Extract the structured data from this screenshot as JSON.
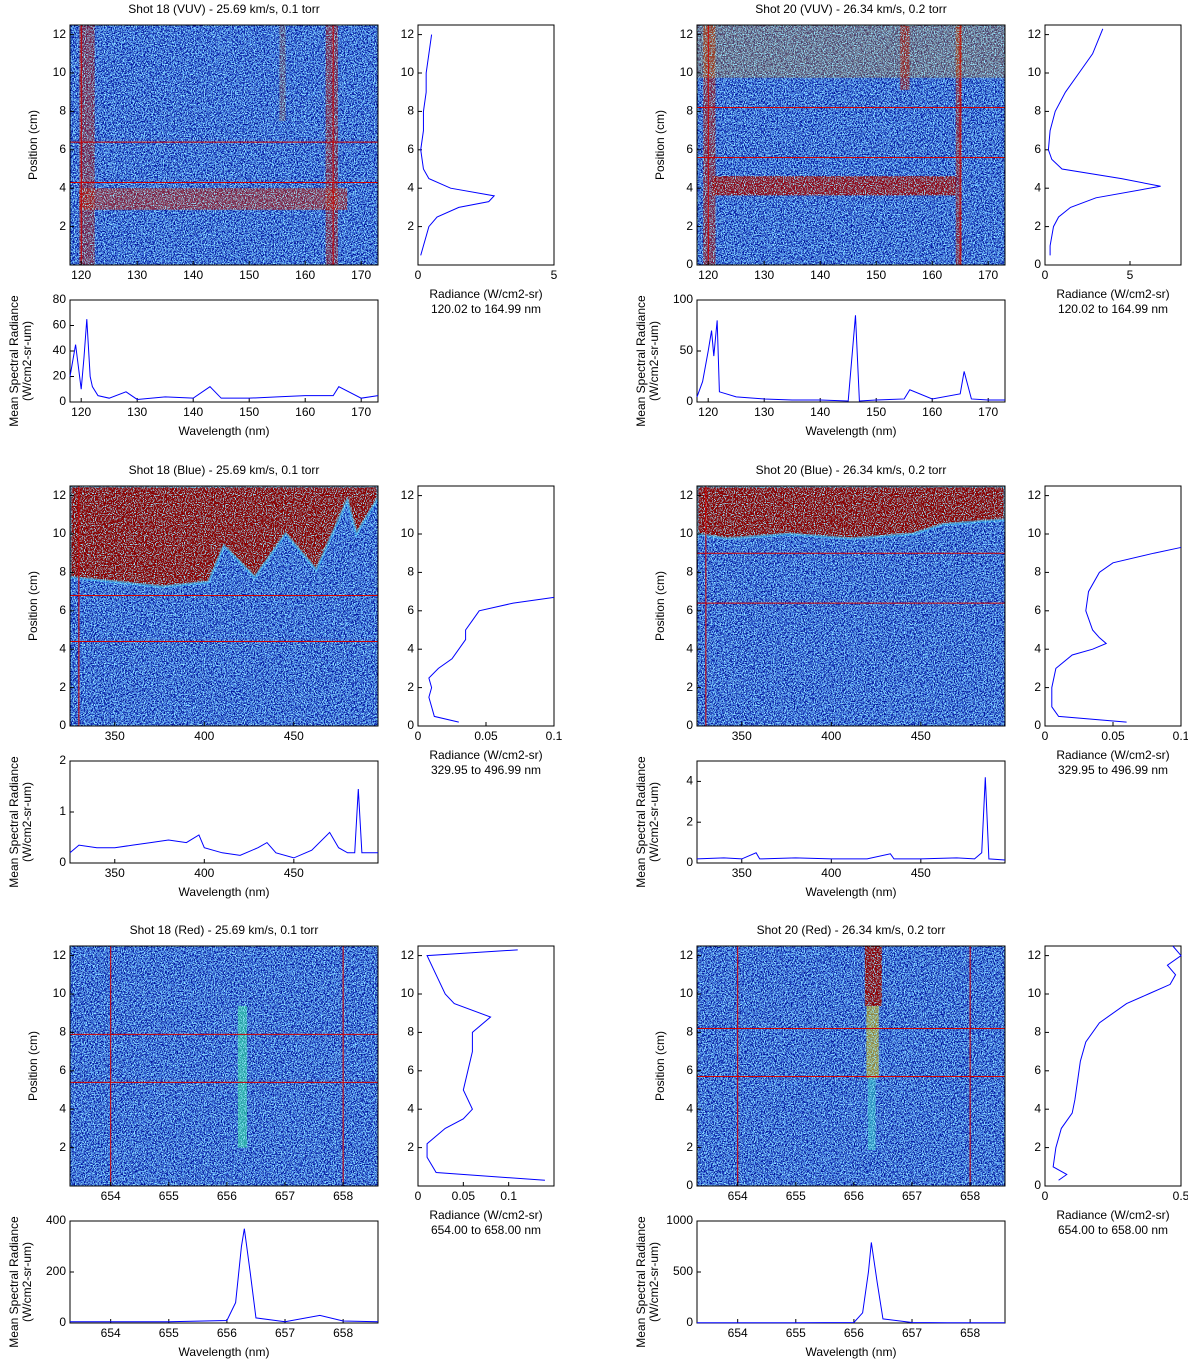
{
  "chart_data": [
    {
      "type": "heatmap",
      "title": "Shot 18 (VUV) - 25.69 km/s, 0.1 torr",
      "ylabel": "Position (cm)",
      "xlim": [
        118,
        173
      ],
      "xticks": [
        120,
        130,
        140,
        150,
        160,
        170
      ],
      "ylim": [
        0,
        12.5
      ],
      "yticks": [
        2,
        4,
        6,
        8,
        10,
        12
      ],
      "hlines": [
        4.3,
        6.4
      ],
      "vlines": [
        120.02,
        164.99
      ],
      "line_color": "#d00000"
    },
    {
      "type": "profile",
      "xlabel": "Radiance (W/cm2-sr)",
      "note": "120.02 to 164.99 nm",
      "xlim": [
        0,
        5
      ],
      "xticks": [
        0,
        5
      ],
      "ylim": [
        0,
        12.5
      ],
      "yticks": [
        2,
        4,
        6,
        8,
        10,
        12
      ],
      "y": [
        0.5,
        1,
        1.5,
        2,
        2.5,
        3,
        3.3,
        3.6,
        4,
        4.5,
        5,
        6,
        7,
        8,
        9,
        10,
        11,
        12
      ],
      "values": [
        0.1,
        0.2,
        0.3,
        0.4,
        0.7,
        1.5,
        2.6,
        2.8,
        1.2,
        0.4,
        0.2,
        0.1,
        0.2,
        0.2,
        0.3,
        0.3,
        0.4,
        0.5
      ],
      "color": "#0000ff"
    },
    {
      "type": "spectrum",
      "ylabel": [
        "Mean Spectral Radiance",
        "(W/cm2-sr-um)"
      ],
      "xlabel": "Wavelength (nm)",
      "xlim": [
        118,
        173
      ],
      "xticks": [
        120,
        130,
        140,
        150,
        160,
        170
      ],
      "ylim": [
        0,
        80
      ],
      "yticks": [
        0,
        20,
        40,
        60,
        80
      ],
      "x": [
        118,
        119,
        120,
        120.5,
        121,
        121.6,
        122,
        123,
        125,
        128,
        130,
        135,
        140,
        143,
        145,
        150,
        155,
        160,
        165,
        166,
        170,
        173
      ],
      "values": [
        20,
        45,
        10,
        35,
        65,
        20,
        12,
        5,
        3,
        8,
        2,
        4,
        3,
        12,
        3,
        3,
        4,
        5,
        5,
        12,
        3,
        5
      ],
      "color": "#0000ff"
    },
    {
      "type": "heatmap",
      "title": "Shot 20 (VUV) - 26.34 km/s, 0.2 torr",
      "ylabel": "Position (cm)",
      "xlim": [
        118,
        173
      ],
      "xticks": [
        120,
        130,
        140,
        150,
        160,
        170
      ],
      "ylim": [
        0,
        12.5
      ],
      "yticks": [
        0,
        2,
        4,
        6,
        8,
        10,
        12
      ],
      "hlines": [
        5.6,
        8.2
      ],
      "vlines": [
        120.02,
        164.99
      ],
      "line_color": "#d00000"
    },
    {
      "type": "profile",
      "xlabel": "Radiance (W/cm2-sr)",
      "note": "120.02 to 164.99 nm",
      "xlim": [
        0,
        8
      ],
      "xticks": [
        0,
        5
      ],
      "ylim": [
        0,
        12.5
      ],
      "yticks": [
        0,
        2,
        4,
        6,
        8,
        10,
        12
      ],
      "y": [
        0.5,
        1,
        1.5,
        2,
        2.5,
        3,
        3.5,
        4.1,
        4.5,
        5,
        5.5,
        6,
        7,
        8,
        9,
        10,
        11,
        12.3
      ],
      "values": [
        0.3,
        0.3,
        0.4,
        0.5,
        0.8,
        1.5,
        3,
        6.8,
        4.5,
        1,
        0.4,
        0.2,
        0.3,
        0.6,
        1.2,
        2,
        2.8,
        3.4
      ],
      "color": "#0000ff"
    },
    {
      "type": "spectrum",
      "ylabel": [
        "Mean Spectral Radiance",
        "(W/cm2-sr-um)"
      ],
      "xlabel": "Wavelength (nm)",
      "xlim": [
        118,
        173
      ],
      "xticks": [
        120,
        130,
        140,
        150,
        160,
        170
      ],
      "ylim": [
        0,
        100
      ],
      "yticks": [
        0,
        50,
        100
      ],
      "x": [
        118,
        119,
        120,
        120.6,
        121,
        121.6,
        122,
        125,
        130,
        135,
        140,
        145,
        146.3,
        147,
        150,
        155,
        156,
        160,
        165,
        165.7,
        167,
        170,
        173
      ],
      "values": [
        5,
        20,
        50,
        70,
        45,
        80,
        10,
        5,
        3,
        2,
        2,
        1,
        85,
        1,
        2,
        3,
        12,
        3,
        8,
        30,
        3,
        2,
        2
      ],
      "color": "#0000ff"
    },
    {
      "type": "heatmap",
      "title": "Shot 18 (Blue) - 25.69 km/s, 0.1 torr",
      "ylabel": "Position (cm)",
      "xlim": [
        325,
        497
      ],
      "xticks": [
        350,
        400,
        450
      ],
      "ylim": [
        0,
        12.5
      ],
      "yticks": [
        0,
        2,
        4,
        6,
        8,
        10,
        12
      ],
      "hlines": [
        4.4,
        6.8
      ],
      "vlines": [
        329.95
      ],
      "line_color": "#d00000"
    },
    {
      "type": "profile",
      "xlabel": "Radiance (W/cm2-sr)",
      "note": "329.95 to 496.99 nm",
      "xlim": [
        0,
        0.1
      ],
      "xticks": [
        0,
        0.05,
        0.1
      ],
      "ylim": [
        0,
        12.5
      ],
      "yticks": [
        0,
        2,
        4,
        6,
        8,
        10,
        12
      ],
      "y": [
        0.2,
        0.5,
        1,
        1.5,
        2,
        2.5,
        3,
        3.5,
        4,
        4.5,
        5,
        5.5,
        6,
        6.4,
        6.7
      ],
      "values": [
        0.03,
        0.012,
        0.01,
        0.008,
        0.01,
        0.008,
        0.015,
        0.025,
        0.03,
        0.035,
        0.035,
        0.04,
        0.045,
        0.07,
        0.1
      ],
      "color": "#0000ff"
    },
    {
      "type": "spectrum",
      "ylabel": [
        "Mean Spectral Radiance",
        "(W/cm2-sr-um)"
      ],
      "xlabel": "Wavelength (nm)",
      "xlim": [
        325,
        497
      ],
      "xticks": [
        350,
        400,
        450
      ],
      "ylim": [
        0,
        2
      ],
      "yticks": [
        0,
        1,
        2
      ],
      "x": [
        325,
        330,
        340,
        350,
        360,
        370,
        380,
        390,
        397,
        400,
        410,
        420,
        430,
        435,
        440,
        450,
        460,
        470,
        475,
        480,
        484,
        486,
        488,
        497
      ],
      "values": [
        0.2,
        0.35,
        0.3,
        0.3,
        0.35,
        0.4,
        0.45,
        0.4,
        0.55,
        0.3,
        0.2,
        0.15,
        0.3,
        0.4,
        0.2,
        0.1,
        0.25,
        0.6,
        0.3,
        0.2,
        0.2,
        1.45,
        0.2,
        0.2
      ],
      "color": "#0000ff"
    },
    {
      "type": "heatmap",
      "title": "Shot 20 (Blue) - 26.34 km/s, 0.2 torr",
      "ylabel": "Position (cm)",
      "xlim": [
        325,
        497
      ],
      "xticks": [
        350,
        400,
        450
      ],
      "ylim": [
        0,
        12.5
      ],
      "yticks": [
        0,
        2,
        4,
        6,
        8,
        10,
        12
      ],
      "hlines": [
        6.4,
        9.0
      ],
      "vlines": [
        329.95
      ],
      "line_color": "#d00000"
    },
    {
      "type": "profile",
      "xlabel": "Radiance (W/cm2-sr)",
      "note": "329.95 to 496.99 nm",
      "xlim": [
        0,
        0.1
      ],
      "xticks": [
        0,
        0.05,
        0.1
      ],
      "ylim": [
        0,
        12.5
      ],
      "yticks": [
        0,
        2,
        4,
        6,
        8,
        10,
        12
      ],
      "y": [
        0.2,
        0.5,
        1,
        2,
        3,
        3.7,
        4,
        4.3,
        4.6,
        5,
        6,
        7,
        8,
        8.5,
        9,
        9.3
      ],
      "values": [
        0.06,
        0.01,
        0.005,
        0.005,
        0.008,
        0.02,
        0.035,
        0.045,
        0.04,
        0.035,
        0.03,
        0.032,
        0.04,
        0.05,
        0.08,
        0.1
      ],
      "color": "#0000ff"
    },
    {
      "type": "spectrum",
      "ylabel": [
        "Mean Spectral Radiance",
        "(W/cm2-sr-um)"
      ],
      "xlabel": "Wavelength (nm)",
      "xlim": [
        325,
        497
      ],
      "xticks": [
        350,
        400,
        450
      ],
      "ylim": [
        0,
        5
      ],
      "yticks": [
        0,
        2,
        4
      ],
      "x": [
        325,
        340,
        350,
        358,
        360,
        380,
        400,
        420,
        433,
        435,
        450,
        470,
        480,
        484,
        486,
        488,
        497
      ],
      "values": [
        0.2,
        0.25,
        0.2,
        0.5,
        0.2,
        0.25,
        0.2,
        0.2,
        0.45,
        0.2,
        0.2,
        0.25,
        0.2,
        0.5,
        4.2,
        0.2,
        0.15
      ],
      "color": "#0000ff"
    },
    {
      "type": "heatmap",
      "title": "Shot 18 (Red) - 25.69 km/s, 0.1 torr",
      "ylabel": "Position (cm)",
      "xlim": [
        653.3,
        658.6
      ],
      "xticks": [
        654,
        655,
        656,
        657,
        658
      ],
      "ylim": [
        0,
        12.5
      ],
      "yticks": [
        2,
        4,
        6,
        8,
        10,
        12
      ],
      "hlines": [
        5.4,
        7.9
      ],
      "vlines": [
        654,
        658
      ],
      "line_color": "#d00000"
    },
    {
      "type": "profile",
      "xlabel": "Radiance (W/cm2-sr)",
      "note": "654.00 to 658.00 nm",
      "xlim": [
        0,
        0.15
      ],
      "xticks": [
        0,
        0.05,
        0.1
      ],
      "ylim": [
        0,
        12.5
      ],
      "yticks": [
        2,
        4,
        6,
        8,
        10,
        12
      ],
      "y": [
        0.3,
        0.7,
        1.5,
        2.2,
        3,
        3.5,
        4,
        5,
        6,
        7,
        8,
        8.8,
        9.5,
        10,
        11,
        12,
        12.3
      ],
      "values": [
        0.14,
        0.02,
        0.01,
        0.01,
        0.03,
        0.05,
        0.06,
        0.05,
        0.055,
        0.06,
        0.06,
        0.08,
        0.04,
        0.03,
        0.02,
        0.01,
        0.11
      ],
      "color": "#0000ff"
    },
    {
      "type": "spectrum",
      "ylabel": [
        "Mean Spectral Radiance",
        "(W/cm2-sr-um)"
      ],
      "xlabel": "Wavelength (nm)",
      "xlim": [
        653.3,
        658.6
      ],
      "xticks": [
        654,
        655,
        656,
        657,
        658
      ],
      "ylim": [
        0,
        400
      ],
      "yticks": [
        0,
        200,
        400
      ],
      "x": [
        653.3,
        654,
        655,
        656,
        656.15,
        656.25,
        656.3,
        656.4,
        656.5,
        657,
        657.6,
        658,
        658.6
      ],
      "values": [
        5,
        5,
        5,
        10,
        80,
        300,
        370,
        200,
        20,
        5,
        30,
        8,
        5
      ],
      "color": "#0000ff"
    },
    {
      "type": "heatmap",
      "title": "Shot 20 (Red) - 26.34 km/s, 0.2 torr",
      "ylabel": "Position (cm)",
      "xlim": [
        653.3,
        658.6
      ],
      "xticks": [
        654,
        655,
        656,
        657,
        658
      ],
      "ylim": [
        0,
        12.5
      ],
      "yticks": [
        0,
        2,
        4,
        6,
        8,
        10,
        12
      ],
      "hlines": [
        5.7,
        8.2
      ],
      "vlines": [
        654,
        658
      ],
      "line_color": "#d00000"
    },
    {
      "type": "profile",
      "xlabel": "Radiance (W/cm2-sr)",
      "note": "654.00 to 658.00 nm",
      "xlim": [
        0,
        0.5
      ],
      "xticks": [
        0,
        0.5
      ],
      "ylim": [
        0,
        12.5
      ],
      "yticks": [
        0,
        2,
        4,
        6,
        8,
        10,
        12
      ],
      "y": [
        0.3,
        0.6,
        1,
        2,
        3,
        3.8,
        4.5,
        5.5,
        6.5,
        7.5,
        8.5,
        9.5,
        10,
        10.5,
        11,
        11.5,
        12,
        12.5
      ],
      "values": [
        0.05,
        0.08,
        0.03,
        0.04,
        0.06,
        0.1,
        0.11,
        0.12,
        0.13,
        0.15,
        0.2,
        0.3,
        0.38,
        0.46,
        0.48,
        0.45,
        0.5,
        0.47
      ],
      "color": "#0000ff"
    },
    {
      "type": "spectrum",
      "ylabel": [
        "Mean Spectral Radiance",
        "(W/cm2-sr-um)"
      ],
      "xlabel": "Wavelength (nm)",
      "xlim": [
        653.3,
        658.6
      ],
      "xticks": [
        654,
        655,
        656,
        657,
        658
      ],
      "ylim": [
        0,
        1000
      ],
      "yticks": [
        0,
        500,
        1000
      ],
      "x": [
        653.3,
        654,
        655,
        656,
        656.15,
        656.25,
        656.3,
        656.4,
        656.5,
        657,
        657.6,
        658,
        658.6
      ],
      "values": [
        2,
        2,
        2,
        5,
        100,
        500,
        790,
        400,
        40,
        5,
        3,
        3,
        2
      ],
      "color": "#0000ff"
    }
  ]
}
